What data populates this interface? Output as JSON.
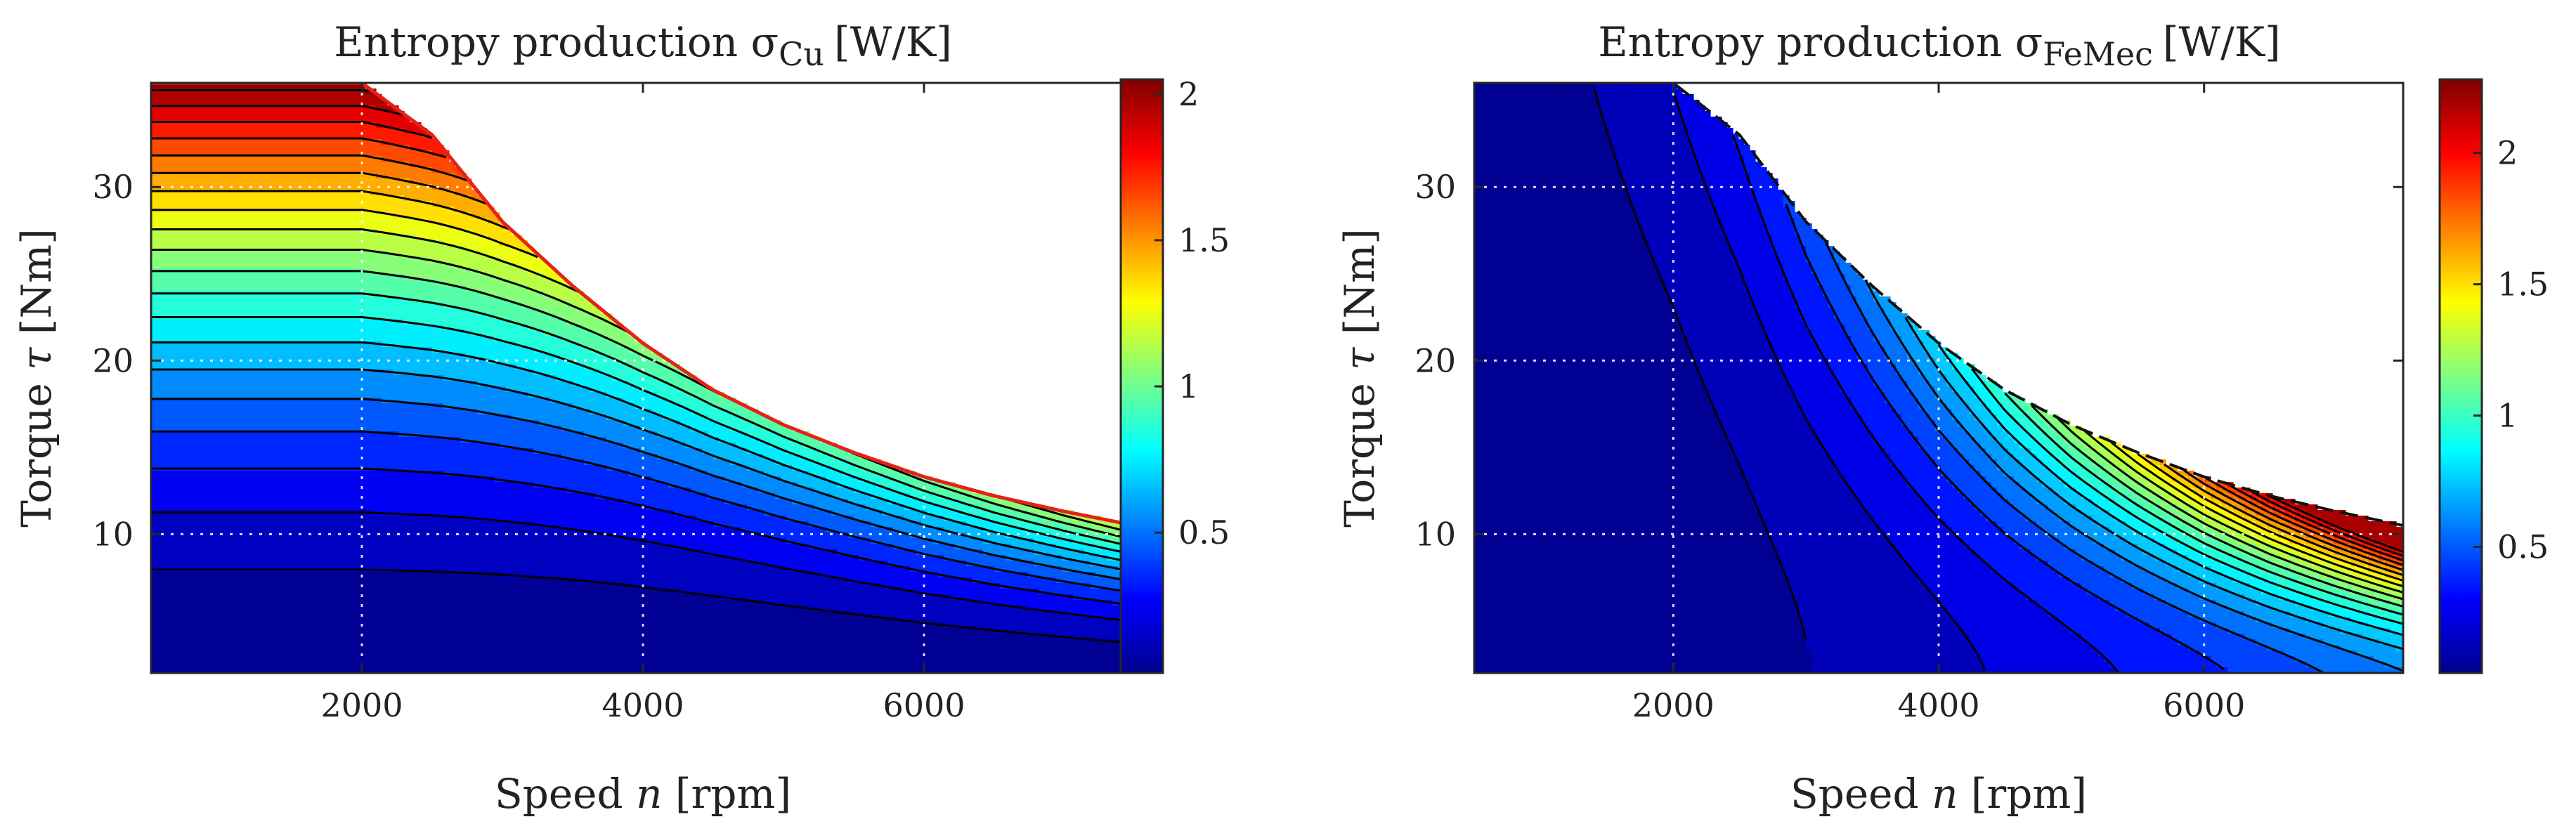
{
  "chart_data": [
    {
      "type": "contour",
      "title": "Entropy production σ",
      "title_subscript": "Cu",
      "title_unit": "[W/K]",
      "xlabel_main": "Speed ",
      "xlabel_var": "n",
      "xlabel_unit": " [rpm]",
      "ylabel_main": "Torque ",
      "ylabel_var": "τ",
      "ylabel_unit": " [Nm]",
      "xlim": [
        500,
        7500
      ],
      "ylim": [
        2,
        36
      ],
      "xticks": [
        2000,
        4000,
        6000
      ],
      "yticks": [
        10,
        20,
        30
      ],
      "grid": true,
      "colormap": "jet",
      "colorbar_range": [
        0.02,
        2.05
      ],
      "colorbar_ticks": [
        0.5,
        1,
        1.5,
        2
      ],
      "colorbar_tick_labels": [
        "0.5",
        "1",
        "1.5",
        "2"
      ],
      "max_torque_envelope": [
        [
          500,
          36
        ],
        [
          2000,
          36
        ],
        [
          2500,
          33
        ],
        [
          3000,
          28
        ],
        [
          3500,
          24.3
        ],
        [
          4000,
          21
        ],
        [
          4500,
          18.3
        ],
        [
          5000,
          16.3
        ],
        [
          5500,
          14.7
        ],
        [
          6000,
          13.3
        ],
        [
          6500,
          12.2
        ],
        [
          7000,
          11.3
        ],
        [
          7500,
          10.5
        ]
      ],
      "field": "copper_loss",
      "contour_levels": [
        0.1,
        0.2,
        0.3,
        0.4,
        0.5,
        0.6,
        0.7,
        0.8,
        0.9,
        1.0,
        1.1,
        1.2,
        1.3,
        1.4,
        1.5,
        1.6,
        1.7,
        1.8,
        1.9,
        2.0
      ]
    },
    {
      "type": "contour",
      "title": "Entropy production σ",
      "title_subscript": "FeMec",
      "title_unit": "[W/K]",
      "xlabel_main": "Speed ",
      "xlabel_var": "n",
      "xlabel_unit": " [rpm]",
      "ylabel_main": "Torque ",
      "ylabel_var": "τ",
      "ylabel_unit": " [Nm]",
      "xlim": [
        500,
        7500
      ],
      "ylim": [
        2,
        36
      ],
      "xticks": [
        2000,
        4000,
        6000
      ],
      "yticks": [
        10,
        20,
        30
      ],
      "grid": true,
      "colormap": "jet",
      "colorbar_range": [
        0.02,
        2.28
      ],
      "colorbar_ticks": [
        0.5,
        1,
        1.5,
        2
      ],
      "colorbar_tick_labels": [
        "0.5",
        "1",
        "1.5",
        "2"
      ],
      "max_torque_envelope": [
        [
          500,
          36
        ],
        [
          2000,
          36
        ],
        [
          2500,
          33
        ],
        [
          3000,
          28
        ],
        [
          3500,
          24.3
        ],
        [
          4000,
          21
        ],
        [
          4500,
          18.3
        ],
        [
          5000,
          16.3
        ],
        [
          5500,
          14.7
        ],
        [
          6000,
          13.3
        ],
        [
          6500,
          12.2
        ],
        [
          7000,
          11.3
        ],
        [
          7500,
          10.5
        ]
      ],
      "field": "iron_mech_loss",
      "contour_levels": [
        0.1,
        0.2,
        0.3,
        0.4,
        0.5,
        0.6,
        0.7,
        0.8,
        0.9,
        1.0,
        1.1,
        1.2,
        1.3,
        1.4,
        1.5,
        1.6,
        1.7,
        1.8,
        1.9,
        2.0,
        2.1
      ]
    }
  ]
}
